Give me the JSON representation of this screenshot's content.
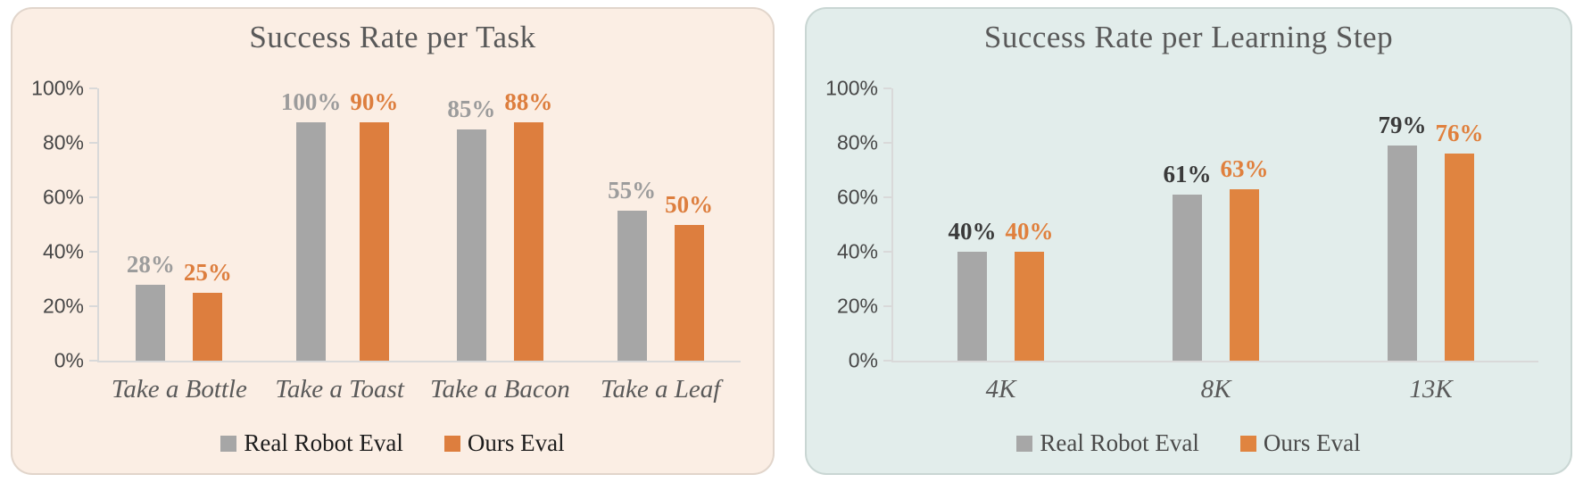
{
  "chart_data": [
    {
      "type": "bar",
      "title": "Success Rate per Task",
      "categories": [
        "Take a Bottle",
        "Take a Toast",
        "Take a Bacon",
        "Take a Leaf"
      ],
      "series": [
        {
          "name": "Real Robot Eval",
          "values": [
            28,
            100,
            85,
            55
          ],
          "labels": [
            "28%",
            "100%",
            "85%",
            "55%"
          ],
          "color": "#a6a6a6",
          "label_color": "#9c9c9c"
        },
        {
          "name": "Ours Eval",
          "values": [
            25,
            90,
            88,
            50
          ],
          "labels": [
            "25%",
            "90%",
            "88%",
            "50%"
          ],
          "color": "#dd7e3e",
          "label_color": "#dd7e3e"
        }
      ],
      "y_ticks": [
        "100%",
        "80%",
        "60%",
        "40%",
        "20%",
        "0%"
      ],
      "ylim": [
        0,
        100
      ],
      "grid": false,
      "legend_position": "bottom",
      "panel_bg": "#fbeee4",
      "legend_text_color": "#1c1c1c"
    },
    {
      "type": "bar",
      "title": "Success Rate per Learning Step",
      "categories": [
        "4K",
        "8K",
        "13K"
      ],
      "series": [
        {
          "name": "Real Robot Eval",
          "values": [
            40,
            61,
            79
          ],
          "labels": [
            "40%",
            "61%",
            "79%"
          ],
          "color": "#a7a7a7",
          "label_color": "#3a3a3a"
        },
        {
          "name": "Ours Eval",
          "values": [
            40,
            63,
            76
          ],
          "labels": [
            "40%",
            "63%",
            "76%"
          ],
          "color": "#e08440",
          "label_color": "#e0803d"
        }
      ],
      "y_ticks": [
        "100%",
        "80%",
        "60%",
        "40%",
        "20%",
        "0%"
      ],
      "ylim": [
        0,
        100
      ],
      "grid": false,
      "legend_position": "bottom",
      "panel_bg": "#e2edeb",
      "legend_text_color": "#4a4a4a"
    }
  ]
}
